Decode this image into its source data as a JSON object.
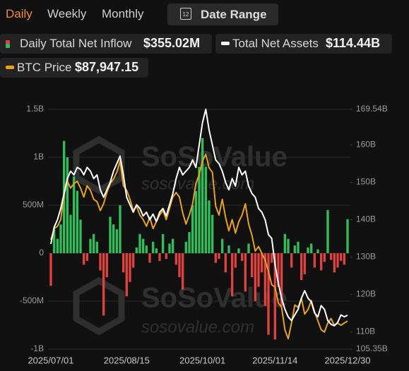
{
  "tabs": [
    "Daily",
    "Weekly",
    "Monthly"
  ],
  "active_tab": "Daily",
  "date_range": {
    "icon_text": "12",
    "label": "Date Range"
  },
  "chart_data": {
    "type": "bar",
    "categories": [
      "2025/07/01",
      null,
      null,
      null,
      null,
      null,
      null,
      null,
      null,
      null,
      null,
      null,
      null,
      null,
      null,
      null,
      null,
      null,
      null,
      null,
      null,
      null,
      null,
      "2025/08/15",
      null,
      null,
      null,
      null,
      null,
      null,
      null,
      null,
      null,
      null,
      null,
      null,
      null,
      null,
      null,
      null,
      null,
      null,
      null,
      null,
      null,
      null,
      "2025/10/01",
      null,
      null,
      null,
      null,
      null,
      null,
      null,
      null,
      null,
      null,
      null,
      null,
      null,
      null,
      null,
      null,
      null,
      null,
      null,
      null,
      null,
      "2025/11/14",
      null,
      null,
      null,
      null,
      null,
      null,
      null,
      null,
      null,
      null,
      null,
      null,
      null,
      null,
      null,
      null,
      null,
      null,
      null,
      null,
      null,
      "2025/12/30"
    ],
    "series": [
      {
        "name": "Daily Total Net Inflow",
        "latest_label": "$355.02M",
        "type": "bar",
        "axis": "y",
        "color": "#2fbf5a",
        "negative_color": "#e0413f",
        "values": [
          -340,
          250,
          150,
          300,
          1170,
          1000,
          400,
          800,
          650,
          350,
          -120,
          -80,
          150,
          200,
          120,
          -180,
          -650,
          -250,
          380,
          300,
          250,
          500,
          -200,
          -450,
          -300,
          -150,
          60,
          200,
          150,
          80,
          -100,
          120,
          50,
          -80,
          200,
          -60,
          100,
          150,
          -120,
          -250,
          -380,
          120,
          220,
          500,
          650,
          900,
          1200,
          900,
          550,
          400,
          -100,
          -60,
          150,
          -200,
          80,
          -450,
          -150,
          50,
          -80,
          -400,
          100,
          -250,
          -500,
          -350,
          -200,
          -550,
          -850,
          -100,
          -900,
          -350,
          -550,
          200,
          150,
          -150,
          80,
          120,
          -280,
          -220,
          60,
          100,
          -150,
          40,
          -180,
          -90,
          450,
          -70,
          -200,
          -150,
          -80,
          -120,
          355.02
        ]
      },
      {
        "name": "Total Net Assets",
        "latest_label": "$114.44B",
        "type": "line",
        "axis": "y2",
        "color": "#ffffff",
        "values": [
          133.5,
          138,
          140,
          143,
          147,
          151,
          153,
          152,
          154,
          153.5,
          152,
          154,
          153,
          151,
          152,
          148,
          146,
          148,
          150,
          153,
          155,
          157,
          152,
          146,
          144,
          142,
          144,
          143,
          141,
          142,
          140,
          141.5,
          139.5,
          142,
          143,
          141,
          144,
          147,
          151,
          154,
          152,
          153,
          154,
          156,
          154,
          160,
          166,
          169.54,
          164,
          160,
          156,
          155,
          153,
          150,
          148,
          151,
          149,
          154,
          152,
          153,
          149,
          147,
          146,
          143,
          142,
          140,
          136,
          135,
          128,
          123,
          119,
          116,
          114,
          113,
          114.5,
          116,
          119,
          121,
          119,
          118,
          115,
          114,
          117,
          116,
          113,
          112,
          111.6,
          112.5,
          114.5,
          114,
          114.44
        ]
      },
      {
        "name": "BTC Price",
        "latest_label": "$87,947.15",
        "type": "line",
        "axis": "y3",
        "color": "#e8a21a",
        "values": [
          106000,
          108500,
          109000,
          110500,
          116000,
          119000,
          117500,
          118500,
          119000,
          117500,
          115500,
          118000,
          117000,
          115000,
          114500,
          112500,
          114000,
          116500,
          118500,
          119500,
          121000,
          123500,
          118000,
          117000,
          115000,
          112500,
          113500,
          111500,
          110500,
          109000,
          111000,
          108500,
          110000,
          111500,
          112500,
          110500,
          113000,
          115500,
          116500,
          115500,
          112000,
          109500,
          111500,
          114000,
          118500,
          120500,
          123500,
          125000,
          122000,
          121000,
          113500,
          111500,
          115000,
          111000,
          108000,
          110500,
          107500,
          110000,
          111500,
          114000,
          109500,
          107000,
          103500,
          104500,
          103000,
          101500,
          99000,
          96000,
          95500,
          92000,
          91000,
          86000,
          84000,
          87500,
          91500,
          91000,
          93000,
          89500,
          90500,
          92500,
          90000,
          88000,
          86000,
          85500,
          87500,
          88500,
          87000,
          87500,
          87000,
          87500,
          87947.15
        ]
      }
    ],
    "ylim": [
      -1000,
      1500
    ],
    "yticks": [
      {
        "value": 1500,
        "label": "1.5B"
      },
      {
        "value": 1000,
        "label": "1B"
      },
      {
        "value": 500,
        "label": "500M"
      },
      0,
      {
        "value": -500,
        "label": "-500M"
      },
      {
        "value": -1000,
        "label": "-1B"
      }
    ],
    "y2lim": [
      105.35,
      169.54
    ],
    "y2ticks": [
      {
        "value": 169.54,
        "label": "169.54B"
      },
      {
        "value": 160,
        "label": "160B"
      },
      {
        "value": 150,
        "label": "150B"
      },
      {
        "value": 140,
        "label": "140B"
      },
      {
        "value": 130,
        "label": "130B"
      },
      {
        "value": 120,
        "label": "120B"
      },
      {
        "value": 110,
        "label": "110B"
      },
      {
        "value": 105.35,
        "label": "105.35B"
      }
    ],
    "y3lim": [
      81700,
      135000
    ],
    "grid": true,
    "watermark": [
      "SoSoValue",
      "sosovalue.com"
    ]
  }
}
